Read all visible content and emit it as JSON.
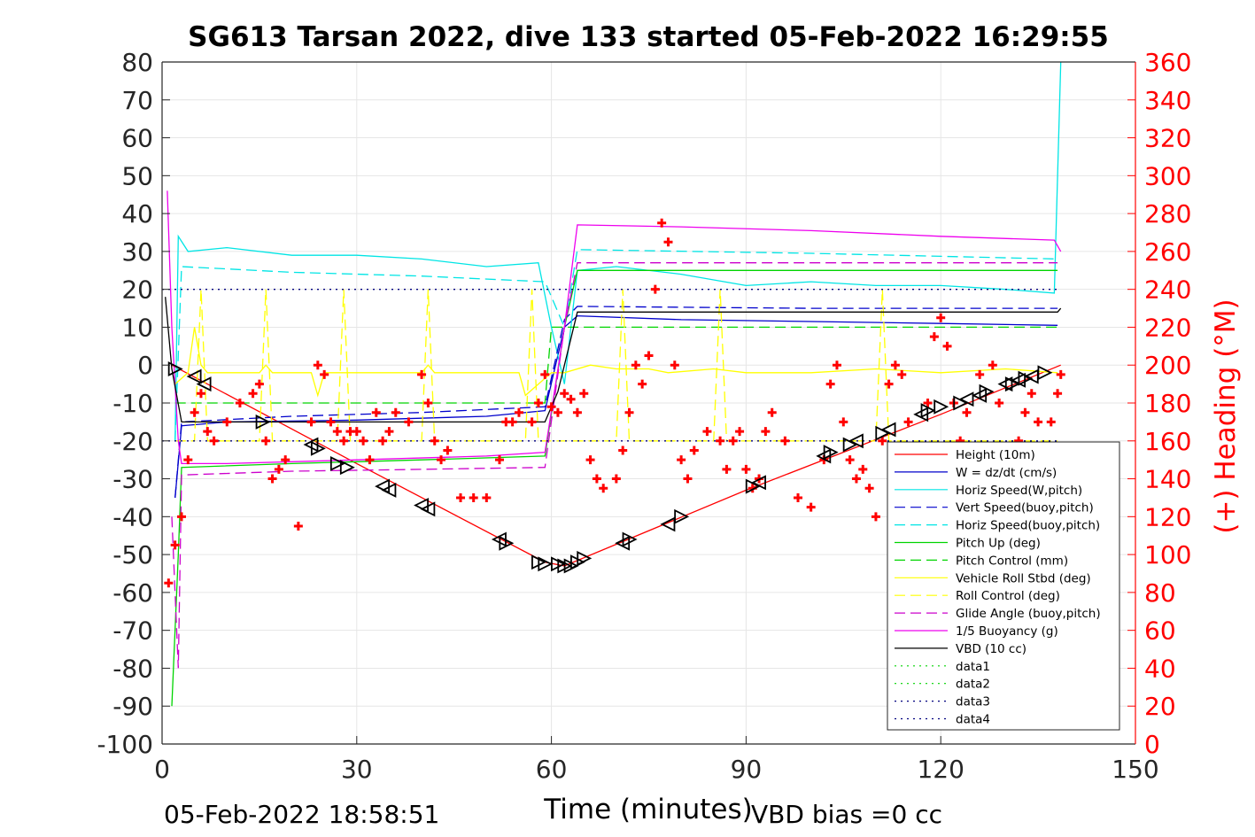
{
  "chart_data": {
    "type": "line",
    "title": "SG613 Tarsan 2022, dive 133 started 05-Feb-2022 16:29:55",
    "xlabel": "Time (minutes)",
    "ylabel_right": "(+) Heading (°M)",
    "xlim": [
      0,
      150
    ],
    "ylim": [
      -100,
      80
    ],
    "ylim_right": [
      0,
      360
    ],
    "x_ticks": [
      "0",
      "30",
      "60",
      "90",
      "120",
      "150"
    ],
    "y_ticks": [
      "80",
      "70",
      "60",
      "50",
      "40",
      "30",
      "20",
      "10",
      "0",
      "-10",
      "-20",
      "-30",
      "-40",
      "-50",
      "-60",
      "-70",
      "-80",
      "-90",
      "-100"
    ],
    "y_right_ticks": [
      "360",
      "340",
      "320",
      "300",
      "280",
      "260",
      "240",
      "220",
      "200",
      "180",
      "160",
      "140",
      "120",
      "100",
      "80",
      "60",
      "40",
      "20",
      "0"
    ],
    "grid": true,
    "legend_position": "bottom-right",
    "footer_left": "05-Feb-2022 18:58:51",
    "footer_right": "VBD bias =0 cc",
    "colors": {
      "height": "#ff0000",
      "w": "#0000cc",
      "horiz": "#00e5e5",
      "vert_buoy": "#0000cc",
      "horiz_buoy": "#00e5e5",
      "pitch": "#00d400",
      "pitch_ctrl": "#00d400",
      "roll": "#ffff00",
      "roll_ctrl": "#ffff00",
      "glide": "#cc00cc",
      "buoy": "#ee00ee",
      "vbd": "#000000",
      "heading": "#ff0000",
      "right_axis": "#ff0000"
    },
    "series": [
      {
        "name": "Height (10m)",
        "color": "#ff0000",
        "dash": "",
        "x": [
          1.5,
          30,
          59,
          62,
          90,
          120,
          138.5
        ],
        "y": [
          0,
          -26,
          -52,
          -53,
          -33,
          -13,
          0
        ]
      },
      {
        "name": "W = dz/dt (cm/s)",
        "color": "#0000cc",
        "dash": "",
        "x": [
          2,
          3,
          10,
          30,
          50,
          59,
          62,
          64,
          80,
          100,
          120,
          138
        ],
        "y": [
          -35,
          -16,
          -15,
          -14.5,
          -13.5,
          -12,
          10,
          13,
          12,
          11.5,
          11,
          10.5
        ]
      },
      {
        "name": "Horiz Speed(W,pitch)",
        "color": "#00e5e5",
        "dash": "",
        "x": [
          2,
          2.5,
          4,
          10,
          20,
          30,
          40,
          50,
          58,
          60,
          62,
          64,
          70,
          80,
          90,
          100,
          110,
          120,
          130,
          137.5,
          138.5
        ],
        "y": [
          -20,
          34,
          30,
          31,
          29,
          29,
          28,
          26,
          27,
          10,
          -5,
          25,
          26,
          24,
          21,
          22,
          21,
          21,
          20,
          19,
          80
        ]
      },
      {
        "name": "Vert Speed(buoy,pitch)",
        "color": "#0000cc",
        "dash": "12,6",
        "x": [
          2,
          3,
          20,
          40,
          59,
          62,
          64,
          100,
          138
        ],
        "y": [
          -35,
          -15,
          -13.5,
          -12.5,
          -11,
          12,
          15.5,
          15,
          15
        ]
      },
      {
        "name": "Horiz Speed(buoy,pitch)",
        "color": "#00e5e5",
        "dash": "12,6",
        "x": [
          2,
          3,
          20,
          40,
          59,
          62,
          64,
          100,
          138
        ],
        "y": [
          -20,
          26,
          24.5,
          23.5,
          22,
          10,
          30.5,
          29.5,
          28
        ]
      },
      {
        "name": "Pitch Up (deg)",
        "color": "#00d400",
        "dash": "",
        "x": [
          1.5,
          2.5,
          3,
          20,
          40,
          59,
          62,
          64,
          100,
          138
        ],
        "y": [
          -90,
          -50,
          -27,
          -26,
          -25,
          -24,
          10,
          25,
          25,
          25
        ]
      },
      {
        "name": "Pitch Control (mm)",
        "color": "#00d400",
        "dash": "12,6",
        "x": [
          2,
          3,
          59,
          60,
          62,
          138
        ],
        "y": [
          -10,
          -10,
          -10,
          10,
          10,
          10
        ]
      },
      {
        "name": "Vehicle Roll Stbd (deg)",
        "color": "#ffff00",
        "dash": "",
        "x": [
          2,
          4,
          5,
          6,
          7,
          15,
          16,
          17,
          23,
          24,
          25,
          30,
          40,
          41,
          42,
          55,
          56,
          60,
          62,
          66,
          70,
          75,
          78,
          85,
          90,
          100,
          110,
          120,
          130,
          138
        ],
        "y": [
          -5,
          -2,
          10,
          0,
          -2,
          -2,
          0,
          -2,
          -2,
          -8,
          -2,
          -2,
          -2,
          0,
          -2,
          -2,
          -8,
          -2,
          -2,
          0,
          -1,
          -1,
          -2,
          -1,
          -2,
          -2,
          -1,
          -2,
          -1,
          -2
        ]
      },
      {
        "name": "Roll Control (deg)",
        "color": "#ffff00",
        "dash": "12,6",
        "x": [
          2,
          5,
          6,
          7,
          15,
          16,
          17,
          27,
          28,
          29,
          40,
          41,
          42,
          56,
          57,
          58,
          70,
          71,
          72,
          85,
          86,
          87,
          110,
          111,
          112,
          138
        ],
        "y": [
          -20,
          -20,
          20,
          -20,
          -20,
          20,
          -20,
          -20,
          20,
          -20,
          -20,
          20,
          -20,
          -20,
          20,
          -20,
          -20,
          20,
          -20,
          -20,
          20,
          -20,
          -20,
          20,
          -20,
          -20
        ]
      },
      {
        "name": "Glide Angle (buoy,pitch)",
        "color": "#cc00cc",
        "dash": "12,6",
        "x": [
          1.5,
          2.5,
          3,
          20,
          40,
          59,
          62,
          64,
          100,
          138
        ],
        "y": [
          -40,
          -80,
          -29,
          -28,
          -27.5,
          -27,
          10,
          27,
          27,
          27
        ]
      },
      {
        "name": "1/5 Buoyancy (g)",
        "color": "#ee00ee",
        "dash": "",
        "x": [
          0.8,
          1.5,
          2.5,
          3,
          10,
          30,
          50,
          59,
          62,
          64,
          80,
          100,
          120,
          137.5,
          138.5
        ],
        "y": [
          46,
          10,
          -20,
          -26,
          -26,
          -25,
          -24,
          -23,
          10,
          37,
          36.5,
          35.5,
          34,
          33,
          30
        ]
      },
      {
        "name": "VBD (10 cc)",
        "color": "#000000",
        "dash": "",
        "x": [
          0.5,
          1.5,
          3,
          59,
          61,
          62,
          64,
          138,
          138.5
        ],
        "y": [
          18,
          -1,
          -15,
          -15,
          -7,
          0,
          14,
          14,
          15
        ]
      },
      {
        "name": "data1",
        "color": "#00d400",
        "dash": "2,5",
        "x": [],
        "y": []
      },
      {
        "name": "data2",
        "color": "#00d400",
        "dash": "2,5",
        "x": [],
        "y": []
      },
      {
        "name": "data3",
        "color": "#00007f",
        "dash": "2,5",
        "x": [
          0,
          138
        ],
        "y": [
          20,
          20
        ]
      },
      {
        "name": "data4",
        "color": "#00007f",
        "dash": "2,5",
        "x": [
          0,
          138
        ],
        "y": [
          -20,
          -20
        ]
      }
    ],
    "heading_right_axis": {
      "marker": "+",
      "x": [
        1,
        2,
        3,
        4,
        5,
        6,
        7,
        8,
        10,
        12,
        14,
        15,
        16,
        17,
        18,
        19,
        21,
        23,
        24,
        25,
        26,
        27,
        28,
        29,
        30,
        31,
        32,
        33,
        34,
        35,
        36,
        38,
        40,
        41,
        42,
        43,
        44,
        46,
        48,
        50,
        52,
        53,
        54,
        55,
        57,
        58,
        59,
        60,
        61,
        62,
        63,
        64,
        65,
        66,
        67,
        68,
        70,
        71,
        72,
        73,
        74,
        75,
        76,
        77,
        78,
        79,
        80,
        81,
        82,
        84,
        86,
        87,
        88,
        89,
        90,
        91,
        92,
        93,
        94,
        96,
        98,
        100,
        102,
        103,
        104,
        105,
        106,
        107,
        108,
        109,
        110,
        111,
        112,
        113,
        114,
        115,
        116,
        117,
        118,
        119,
        120,
        121,
        122,
        123,
        124,
        126,
        128,
        129,
        130,
        131,
        132,
        133,
        134,
        135,
        136,
        137,
        138,
        138.5
      ],
      "y": [
        85,
        105,
        120,
        150,
        175,
        185,
        165,
        160,
        170,
        180,
        185,
        190,
        160,
        140,
        145,
        150,
        115,
        170,
        200,
        195,
        170,
        165,
        160,
        165,
        165,
        160,
        150,
        175,
        160,
        165,
        175,
        170,
        195,
        180,
        160,
        150,
        155,
        130,
        130,
        130,
        150,
        170,
        170,
        175,
        170,
        180,
        195,
        178,
        175,
        185,
        182,
        175,
        185,
        150,
        140,
        135,
        140,
        155,
        175,
        200,
        190,
        205,
        240,
        275,
        265,
        200,
        150,
        140,
        155,
        165,
        160,
        145,
        160,
        165,
        145,
        135,
        140,
        165,
        175,
        160,
        130,
        125,
        150,
        190,
        200,
        170,
        150,
        140,
        145,
        135,
        120,
        160,
        190,
        200,
        195,
        170,
        140,
        145,
        180,
        215,
        225,
        210,
        180,
        160,
        175,
        195,
        200,
        180,
        155,
        150,
        160,
        175,
        185,
        170,
        155,
        170,
        185,
        195
      ]
    },
    "triangles": {
      "x": [
        2,
        5,
        6.5,
        15.5,
        23,
        24,
        27,
        28.5,
        34,
        35,
        40,
        41,
        52,
        53,
        58,
        59,
        61,
        62,
        63,
        64,
        65,
        71,
        72,
        78,
        80,
        91,
        92,
        102,
        103,
        106,
        107,
        111,
        112,
        117,
        118,
        120,
        123,
        124,
        126,
        127,
        130,
        131,
        132,
        133,
        134,
        136
      ],
      "y": [
        -1,
        -3,
        -5,
        -15,
        -21,
        -22,
        -26,
        -27,
        -32,
        -33,
        -37,
        -38,
        -46,
        -47,
        -52,
        -52.5,
        -52.5,
        -53,
        -53,
        -52,
        -51,
        -47,
        -46,
        -42,
        -40,
        -32,
        -31,
        -24,
        -23,
        -21,
        -20,
        -18,
        -17,
        -13,
        -12,
        -11,
        -10,
        -9,
        -8,
        -7,
        -5,
        -5,
        -4,
        -3.5,
        -3,
        -2
      ],
      "dir": [
        "r",
        "l",
        "l",
        "r",
        "l",
        "r",
        "r",
        "r",
        "l",
        "l",
        "l",
        "l",
        "l",
        "r",
        "r",
        "r",
        "r",
        "r",
        "r",
        "r",
        "r",
        "l",
        "r",
        "l",
        "r",
        "r",
        "l",
        "l",
        "r",
        "r",
        "l",
        "r",
        "l",
        "l",
        "r",
        "r",
        "r",
        "l",
        "l",
        "r",
        "l",
        "r",
        "l",
        "r",
        "l",
        "r"
      ]
    }
  }
}
